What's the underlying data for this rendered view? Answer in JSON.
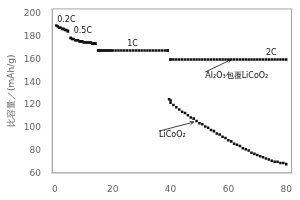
{
  "chart_data": {
    "type": "scatter",
    "ylabel": "比容量／(mAh/g)",
    "xlim": [
      -1,
      82
    ],
    "ylim": [
      60,
      205
    ],
    "xticks": [
      0,
      20,
      40,
      60,
      80
    ],
    "yticks": [
      60,
      80,
      100,
      120,
      140,
      160,
      180,
      200
    ],
    "grid": false,
    "color": "#111111",
    "marker": "square",
    "series": [
      {
        "x": [
          0.5,
          1.0,
          1.5,
          2.0,
          2.5,
          3.0,
          3.5,
          4.0,
          4.5
        ],
        "values": [
          190,
          189,
          188,
          188,
          187,
          187,
          186,
          186,
          185
        ]
      },
      {
        "x": [
          5.5,
          6.0,
          6.5,
          7.0,
          7.5,
          8.0,
          8.5,
          9.0,
          9.5,
          10.0,
          10.5,
          11.0,
          11.5,
          12.0,
          12.5,
          13.0,
          13.5,
          14.0
        ],
        "values": [
          179,
          178,
          178,
          177,
          177,
          177,
          176,
          176,
          176,
          175,
          175,
          175,
          175,
          175,
          175,
          174,
          174,
          174
        ]
      },
      {
        "x": [
          15.0,
          15.5,
          16.0,
          16.5,
          17.0,
          17.5,
          18.0,
          18.5,
          19.0,
          19.5,
          20.0,
          21.0,
          22.0,
          23.0,
          24.0,
          25.0,
          26.0,
          27.0,
          28.0,
          29.0,
          30.0,
          31.0,
          32.0,
          33.0,
          34.0,
          35.0,
          36.0,
          37.0,
          38.0,
          39.0
        ],
        "values": [
          168,
          168,
          168,
          168,
          168,
          168,
          168,
          168,
          168,
          168,
          168,
          168,
          168,
          168,
          168,
          168,
          168,
          168,
          168,
          168,
          168,
          168,
          168,
          168,
          168,
          168,
          168,
          168,
          168,
          168
        ]
      },
      {
        "x": [
          40.0,
          41.0,
          42.0,
          43.0,
          44.0,
          45.0,
          46.0,
          47.0,
          48.0,
          49.0,
          50.0,
          51.0,
          52.0,
          53.0,
          54.0,
          55.0,
          56.0,
          57.0,
          58.0,
          59.0,
          60.0,
          61.0,
          62.0,
          63.0,
          64.0,
          65.0,
          66.0,
          67.0,
          68.0,
          69.0,
          70.0,
          71.0,
          72.0,
          73.0,
          74.0,
          75.0,
          76.0,
          77.0,
          78.0,
          79.0,
          80.0
        ],
        "values": [
          160,
          160,
          160,
          160,
          160,
          160,
          160,
          160,
          160,
          160,
          160,
          160,
          160,
          160,
          160,
          160,
          160,
          160,
          160,
          160,
          160,
          160,
          160,
          160,
          160,
          160,
          160,
          160,
          160,
          160,
          160,
          160,
          160,
          160,
          160,
          160,
          160,
          160,
          160,
          160,
          160
        ]
      },
      {
        "x": [
          4.5,
          5.5
        ],
        "values": [
          185,
          179
        ]
      },
      {
        "x": [
          14.0,
          15.0
        ],
        "values": [
          174,
          168
        ]
      },
      {
        "x": [
          39.0,
          40.0
        ],
        "values": [
          168,
          160
        ]
      },
      {
        "x": [
          39.5,
          40.0
        ],
        "values": [
          125,
          124
        ]
      },
      {
        "x": [
          40.0,
          41.0,
          42.0,
          43.0,
          44.0,
          45.0,
          46.0,
          47.0,
          48.0,
          49.0,
          50.0,
          51.0,
          52.0,
          53.0,
          54.0,
          55.0,
          56.0,
          57.0,
          58.0,
          59.0,
          60.0,
          61.0,
          62.0,
          63.0,
          64.0,
          65.0,
          66.0,
          67.0,
          68.0,
          69.0,
          70.0,
          71.0,
          72.0,
          73.0,
          74.0,
          75.0,
          76.0,
          77.0,
          78.0,
          79.0,
          80.0
        ],
        "values": [
          122,
          120,
          118,
          116,
          114,
          113,
          111,
          109,
          108,
          106,
          104,
          103,
          101,
          100,
          98,
          97,
          95,
          94,
          92,
          91,
          89,
          88,
          86,
          85,
          84,
          82,
          81,
          80,
          78,
          77,
          76,
          75,
          74,
          73,
          72,
          71,
          70,
          70,
          69,
          69,
          68
        ]
      }
    ],
    "annotations": [
      {
        "text": "0.2C",
        "x": 0.8,
        "y": 191.5
      },
      {
        "text": "0.5C",
        "x": 6.5,
        "y": 181.5
      },
      {
        "text": "1C",
        "x": 25.0,
        "y": 170.5
      },
      {
        "text": "2C",
        "x": 73.0,
        "y": 162.5
      },
      {
        "text": "Al₂O₃包覆LiCoO₂",
        "x": 52,
        "y": 149,
        "arrow_to": [
          61,
          160
        ]
      },
      {
        "text": "LiCoO₂",
        "x": 36,
        "y": 97,
        "arrow_to": [
          48,
          105
        ]
      }
    ]
  }
}
